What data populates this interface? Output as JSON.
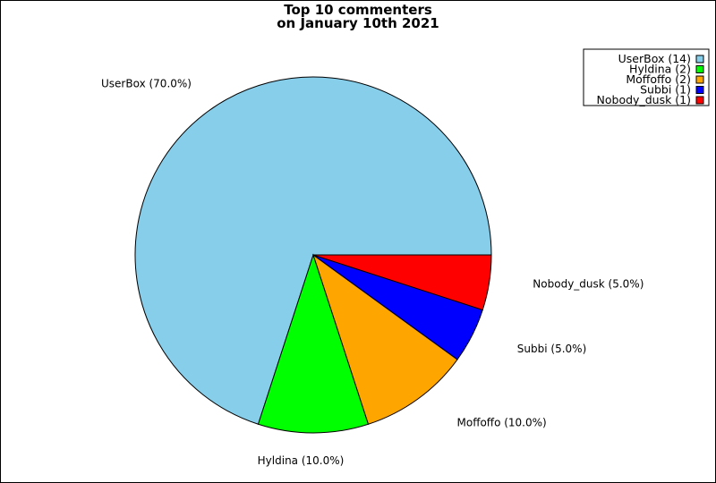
{
  "chart_data": {
    "type": "pie",
    "title_lines": [
      "Top 10 commenters",
      "on January 10th 2021"
    ],
    "slices": [
      {
        "name": "UserBox",
        "value": 14,
        "percent_label": "UserBox (70.0%)",
        "legend_label": "UserBox (14)",
        "color": "#87CEEB"
      },
      {
        "name": "Hyldina",
        "value": 2,
        "percent_label": "Hyldina (10.0%)",
        "legend_label": "Hyldina (2)",
        "color": "#00FF00"
      },
      {
        "name": "Moffoffo",
        "value": 2,
        "percent_label": "Moffoffo (10.0%)",
        "legend_label": "Moffoffo (2)",
        "color": "#FFA500"
      },
      {
        "name": "Subbi",
        "value": 1,
        "percent_label": "Subbi (5.0%)",
        "legend_label": "Subbi (1)",
        "color": "#0000FF"
      },
      {
        "name": "Nobody_dusk",
        "value": 1,
        "percent_label": "Nobody_dusk (5.0%)",
        "legend_label": "Nobody_dusk (1)",
        "color": "#FF0000"
      }
    ],
    "legend_position": "top-right"
  }
}
